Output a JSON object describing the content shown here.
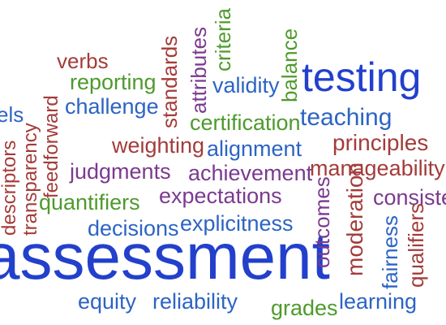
{
  "palette": {
    "blue": "#2c64c4",
    "green": "#4e9a2c",
    "red": "#a33c3a",
    "purple": "#7b3a8f",
    "royal": "#2340cc"
  },
  "words": {
    "testing": "testing",
    "assessment": "assessment",
    "verbs": "verbs",
    "reporting": "reporting",
    "challenge": "challenge",
    "els": "els",
    "feedforward": "feedforward",
    "transparency": "transparency",
    "descriptors": "descriptors",
    "standards": "standards",
    "attributes": "attributes",
    "criteria": "criteria",
    "validity": "validity",
    "balance": "balance",
    "certification": "certification",
    "teaching": "teaching",
    "weighting": "weighting",
    "alignment": "alignment",
    "principles": "principles",
    "judgments": "judgments",
    "achievement": "achievement",
    "manageability": "manageability",
    "quantifiers": "quantifiers",
    "expectations": "expectations",
    "outcomes": "outcomes",
    "moderation": "moderation",
    "consistency": "consiste",
    "decisions": "decisions",
    "explicitness": "explicitness",
    "fairness": "fairness",
    "qualifiers": "qualifiers",
    "equity": "equity",
    "reliability": "reliability",
    "grades": "grades",
    "learning": "learning"
  }
}
